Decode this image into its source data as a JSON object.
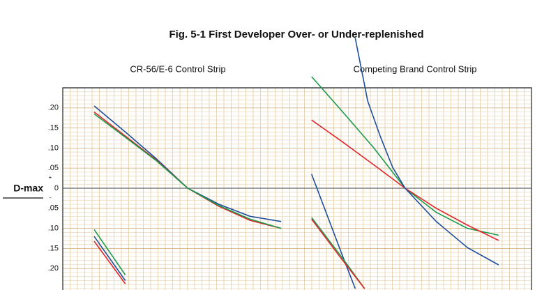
{
  "title": "Fig. 5-1  First Developer Over- or Under-replenished",
  "y_axis": {
    "label": "D-max",
    "plus": "+",
    "minus": "-",
    "ylim": [
      -0.25,
      0.25
    ],
    "yticks": [
      {
        "value": 0.2,
        "label": ".20"
      },
      {
        "value": 0.15,
        "label": ".15"
      },
      {
        "value": 0.1,
        "label": ".10"
      },
      {
        "value": 0.05,
        "label": ".05"
      },
      0,
      {
        "value": -0.05,
        "label": ".05"
      },
      {
        "value": -0.1,
        "label": ".10"
      },
      {
        "value": -0.15,
        "label": ".15"
      },
      {
        "value": -0.2,
        "label": ".20"
      }
    ]
  },
  "chart_data": [
    {
      "type": "line",
      "subtitle": "CR-56/E-6 Control Strip",
      "xlim": [
        0,
        8
      ],
      "series": [
        {
          "color": "#1f4e9c",
          "x": [
            1,
            2,
            3,
            4,
            5,
            6,
            7
          ],
          "values": [
            0.205,
            0.14,
            0.073,
            0,
            -0.04,
            -0.07,
            -0.083
          ]
        },
        {
          "color": "#e0262a",
          "x": [
            1,
            2,
            3,
            4,
            5,
            6,
            7
          ],
          "values": [
            0.19,
            0.13,
            0.07,
            0,
            -0.045,
            -0.08,
            -0.1
          ]
        },
        {
          "color": "#1a9a4a",
          "x": [
            1,
            2,
            3,
            4,
            5,
            6,
            7
          ],
          "values": [
            0.185,
            0.127,
            0.068,
            0,
            -0.043,
            -0.077,
            -0.1
          ]
        },
        {
          "color": "#1a9a4a",
          "x": [
            1,
            2
          ],
          "values": [
            -0.103,
            -0.216
          ]
        },
        {
          "color": "#1f4e9c",
          "x": [
            1,
            2
          ],
          "values": [
            -0.12,
            -0.23
          ]
        },
        {
          "color": "#e0262a",
          "x": [
            1,
            2
          ],
          "values": [
            -0.132,
            -0.238
          ]
        }
      ]
    },
    {
      "type": "line",
      "subtitle": "Competing Brand Control Strip",
      "xlim": [
        0,
        8
      ],
      "series": [
        {
          "color": "#1a9a4a",
          "x": [
            1,
            2,
            3,
            4,
            5,
            6,
            7
          ],
          "values": [
            0.278,
            0.19,
            0.1,
            0,
            -0.06,
            -0.1,
            -0.117
          ]
        },
        {
          "color": "#e0262a",
          "x": [
            1,
            2,
            3,
            4,
            5,
            6,
            7
          ],
          "values": [
            0.17,
            0.115,
            0.058,
            0,
            -0.05,
            -0.092,
            -0.13
          ]
        },
        {
          "color": "#1f4e9c",
          "x": [
            2.4,
            2.8,
            3.2,
            3.6,
            4,
            5,
            6,
            7
          ],
          "values": [
            0.374,
            0.217,
            0.13,
            0.052,
            0,
            -0.083,
            -0.148,
            -0.191
          ]
        },
        {
          "color": "#1f4e9c",
          "x": [
            1,
            2,
            2.4
          ],
          "values": [
            0.035,
            -0.17,
            -0.25
          ]
        },
        {
          "color": "#1a9a4a",
          "x": [
            1,
            2,
            2.7
          ],
          "values": [
            -0.073,
            -0.175,
            -0.25
          ]
        },
        {
          "color": "#e0262a",
          "x": [
            1,
            2,
            2.7
          ],
          "values": [
            -0.077,
            -0.18,
            -0.25
          ]
        }
      ]
    }
  ]
}
